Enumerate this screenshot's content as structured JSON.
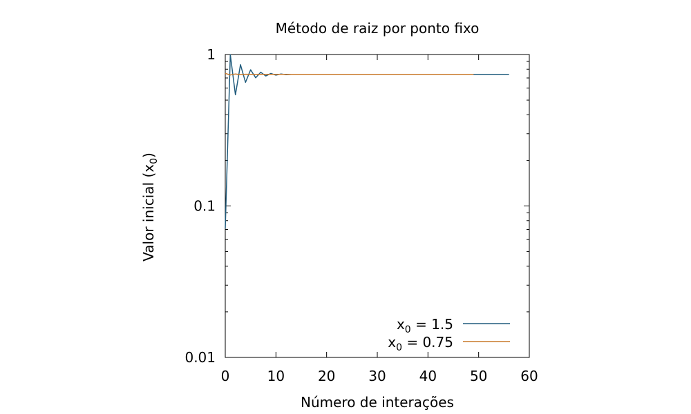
{
  "chart_data": {
    "type": "line",
    "title": "Método de raiz por ponto fixo",
    "xlabel": "Número de interações",
    "ylabel": {
      "base": "Valor inicial (x",
      "sub": "0",
      "close": ")"
    },
    "xlim": [
      0,
      60
    ],
    "ylim": [
      0.01,
      1
    ],
    "yscale": "log",
    "grid": false,
    "legend_position": "bottom-right",
    "x_ticks": [
      {
        "v": 0,
        "label": "0"
      },
      {
        "v": 10,
        "label": "10"
      },
      {
        "v": 20,
        "label": "20"
      },
      {
        "v": 30,
        "label": "30"
      },
      {
        "v": 40,
        "label": "40"
      },
      {
        "v": 50,
        "label": "50"
      },
      {
        "v": 60,
        "label": "60"
      }
    ],
    "y_ticks": [
      {
        "v": 0.01,
        "label": "0.01"
      },
      {
        "v": 0.1,
        "label": "0.1"
      },
      {
        "v": 1,
        "label": "1"
      }
    ],
    "series": [
      {
        "label_base": "x",
        "label_sub": "0",
        "label_rest": " = 1.5",
        "color": "#215c7d",
        "x": [
          0,
          1,
          2,
          3,
          4,
          5,
          6,
          7,
          8,
          9,
          10,
          11,
          12,
          13,
          56
        ],
        "y": [
          0.071,
          0.997,
          0.542,
          0.857,
          0.655,
          0.793,
          0.702,
          0.764,
          0.722,
          0.75,
          0.731,
          0.744,
          0.736,
          0.739,
          0.739
        ]
      },
      {
        "label_base": "x",
        "label_sub": "0",
        "label_rest": " = 0.75",
        "color": "#c8782a",
        "x": [
          0,
          1,
          2,
          3,
          4,
          5,
          49
        ],
        "y": [
          0.75,
          0.732,
          0.744,
          0.736,
          0.741,
          0.739,
          0.739
        ]
      }
    ]
  }
}
